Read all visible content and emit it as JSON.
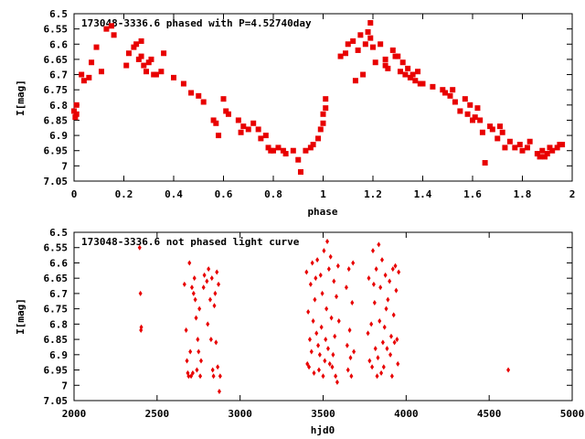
{
  "colors": {
    "marker": "#e80000",
    "axis": "#000000",
    "background": "#ffffff"
  },
  "chart_data": [
    {
      "type": "scatter",
      "title": "173048-3336.6 phased with P=4.52740day",
      "xlabel": "phase",
      "ylabel": "I[mag]",
      "xlim": [
        0,
        2
      ],
      "ylim": [
        6.5,
        7.05
      ],
      "y_inverted": true,
      "grid": false,
      "xticks": [
        0,
        0.2,
        0.4,
        0.6,
        0.8,
        1,
        1.2,
        1.4,
        1.6,
        1.8,
        2
      ],
      "xtick_labels": [
        "0",
        "0.2",
        "0.4",
        "0.6",
        "0.8",
        "1",
        "1.2",
        "1.4",
        "1.6",
        "1.8",
        "2"
      ],
      "yticks": [
        6.5,
        6.55,
        6.6,
        6.65,
        6.7,
        6.75,
        6.8,
        6.85,
        6.9,
        6.95,
        7,
        7.05
      ],
      "ytick_labels": [
        "6.5",
        "6.55",
        "6.6",
        "6.65",
        "6.7",
        "6.75",
        "6.8",
        "6.85",
        "6.9",
        "6.95",
        "7",
        "7.05"
      ],
      "marker": "square",
      "points": [
        [
          0.0,
          6.82
        ],
        [
          0.005,
          6.84
        ],
        [
          0.01,
          6.83
        ],
        [
          0.01,
          6.8
        ],
        [
          0.03,
          6.7
        ],
        [
          0.04,
          6.72
        ],
        [
          0.06,
          6.71
        ],
        [
          0.07,
          6.66
        ],
        [
          0.09,
          6.61
        ],
        [
          0.11,
          6.69
        ],
        [
          0.13,
          6.55
        ],
        [
          0.15,
          6.54
        ],
        [
          0.16,
          6.57
        ],
        [
          0.21,
          6.67
        ],
        [
          0.22,
          6.63
        ],
        [
          0.24,
          6.61
        ],
        [
          0.25,
          6.6
        ],
        [
          0.26,
          6.65
        ],
        [
          0.27,
          6.59
        ],
        [
          0.27,
          6.64
        ],
        [
          0.28,
          6.67
        ],
        [
          0.29,
          6.69
        ],
        [
          0.3,
          6.66
        ],
        [
          0.31,
          6.65
        ],
        [
          0.32,
          6.7
        ],
        [
          0.33,
          6.7
        ],
        [
          0.35,
          6.69
        ],
        [
          0.36,
          6.63
        ],
        [
          0.4,
          6.71
        ],
        [
          0.44,
          6.73
        ],
        [
          0.47,
          6.76
        ],
        [
          0.5,
          6.77
        ],
        [
          0.52,
          6.79
        ],
        [
          0.56,
          6.85
        ],
        [
          0.57,
          6.86
        ],
        [
          0.58,
          6.9
        ],
        [
          0.6,
          6.78
        ],
        [
          0.61,
          6.82
        ],
        [
          0.62,
          6.83
        ],
        [
          0.66,
          6.85
        ],
        [
          0.67,
          6.89
        ],
        [
          0.68,
          6.87
        ],
        [
          0.7,
          6.88
        ],
        [
          0.72,
          6.86
        ],
        [
          0.74,
          6.88
        ],
        [
          0.75,
          6.91
        ],
        [
          0.77,
          6.9
        ],
        [
          0.78,
          6.94
        ],
        [
          0.79,
          6.95
        ],
        [
          0.8,
          6.95
        ],
        [
          0.82,
          6.94
        ],
        [
          0.84,
          6.95
        ],
        [
          0.85,
          6.96
        ],
        [
          0.88,
          6.95
        ],
        [
          0.9,
          6.98
        ],
        [
          0.91,
          7.02
        ],
        [
          0.93,
          6.95
        ],
        [
          0.95,
          6.94
        ],
        [
          0.96,
          6.93
        ],
        [
          0.98,
          6.91
        ],
        [
          0.99,
          6.88
        ],
        [
          1.0,
          6.86
        ],
        [
          1.0,
          6.83
        ],
        [
          1.01,
          6.81
        ],
        [
          1.01,
          6.78
        ],
        [
          1.07,
          6.64
        ],
        [
          1.09,
          6.63
        ],
        [
          1.1,
          6.6
        ],
        [
          1.12,
          6.59
        ],
        [
          1.13,
          6.72
        ],
        [
          1.14,
          6.62
        ],
        [
          1.15,
          6.57
        ],
        [
          1.16,
          6.7
        ],
        [
          1.17,
          6.6
        ],
        [
          1.18,
          6.56
        ],
        [
          1.19,
          6.53
        ],
        [
          1.19,
          6.58
        ],
        [
          1.2,
          6.61
        ],
        [
          1.21,
          6.66
        ],
        [
          1.23,
          6.6
        ],
        [
          1.25,
          6.65
        ],
        [
          1.25,
          6.67
        ],
        [
          1.26,
          6.68
        ],
        [
          1.28,
          6.62
        ],
        [
          1.29,
          6.64
        ],
        [
          1.3,
          6.64
        ],
        [
          1.31,
          6.69
        ],
        [
          1.32,
          6.66
        ],
        [
          1.33,
          6.7
        ],
        [
          1.34,
          6.68
        ],
        [
          1.35,
          6.71
        ],
        [
          1.36,
          6.7
        ],
        [
          1.37,
          6.72
        ],
        [
          1.38,
          6.69
        ],
        [
          1.39,
          6.73
        ],
        [
          1.4,
          6.73
        ],
        [
          1.44,
          6.74
        ],
        [
          1.48,
          6.75
        ],
        [
          1.49,
          6.76
        ],
        [
          1.51,
          6.77
        ],
        [
          1.52,
          6.75
        ],
        [
          1.53,
          6.79
        ],
        [
          1.55,
          6.82
        ],
        [
          1.57,
          6.78
        ],
        [
          1.58,
          6.83
        ],
        [
          1.59,
          6.8
        ],
        [
          1.6,
          6.85
        ],
        [
          1.61,
          6.84
        ],
        [
          1.62,
          6.81
        ],
        [
          1.63,
          6.85
        ],
        [
          1.64,
          6.89
        ],
        [
          1.65,
          6.99
        ],
        [
          1.67,
          6.87
        ],
        [
          1.68,
          6.88
        ],
        [
          1.7,
          6.91
        ],
        [
          1.71,
          6.87
        ],
        [
          1.72,
          6.89
        ],
        [
          1.73,
          6.94
        ],
        [
          1.75,
          6.92
        ],
        [
          1.77,
          6.94
        ],
        [
          1.79,
          6.93
        ],
        [
          1.8,
          6.95
        ],
        [
          1.82,
          6.94
        ],
        [
          1.83,
          6.92
        ],
        [
          1.86,
          6.96
        ],
        [
          1.87,
          6.97
        ],
        [
          1.88,
          6.95
        ],
        [
          1.89,
          6.97
        ],
        [
          1.9,
          6.96
        ],
        [
          1.91,
          6.94
        ],
        [
          1.92,
          6.95
        ],
        [
          1.94,
          6.94
        ],
        [
          1.95,
          6.93
        ],
        [
          1.96,
          6.93
        ]
      ]
    },
    {
      "type": "scatter",
      "title": "173048-3336.6 not phased light curve",
      "xlabel": "hjd0",
      "ylabel": "I[mag]",
      "xlim": [
        2000,
        5000
      ],
      "ylim": [
        6.5,
        7.05
      ],
      "y_inverted": true,
      "grid": false,
      "xticks": [
        2000,
        2500,
        3000,
        3500,
        4000,
        4500,
        5000
      ],
      "xtick_labels": [
        "2000",
        "2500",
        "3000",
        "3500",
        "4000",
        "4500",
        "5000"
      ],
      "yticks": [
        6.5,
        6.55,
        6.6,
        6.65,
        6.7,
        6.75,
        6.8,
        6.85,
        6.9,
        6.95,
        7,
        7.05
      ],
      "ytick_labels": [
        "6.5",
        "6.55",
        "6.6",
        "6.65",
        "6.7",
        "6.75",
        "6.8",
        "6.85",
        "6.9",
        "6.95",
        "7",
        "7.05"
      ],
      "marker": "diamond",
      "points": [
        [
          2395,
          6.55
        ],
        [
          2400,
          6.7
        ],
        [
          2403,
          6.82
        ],
        [
          2405,
          6.81
        ],
        [
          2665,
          6.67
        ],
        [
          2675,
          6.82
        ],
        [
          2680,
          6.92
        ],
        [
          2685,
          6.96
        ],
        [
          2690,
          6.97
        ],
        [
          2695,
          6.6
        ],
        [
          2700,
          6.89
        ],
        [
          2705,
          6.97
        ],
        [
          2710,
          6.68
        ],
        [
          2715,
          6.96
        ],
        [
          2720,
          6.7
        ],
        [
          2725,
          6.65
        ],
        [
          2730,
          6.72
        ],
        [
          2735,
          6.78
        ],
        [
          2740,
          6.95
        ],
        [
          2745,
          6.85
        ],
        [
          2750,
          6.89
        ],
        [
          2755,
          6.75
        ],
        [
          2760,
          6.97
        ],
        [
          2765,
          6.92
        ],
        [
          2780,
          6.68
        ],
        [
          2785,
          6.64
        ],
        [
          2800,
          6.66
        ],
        [
          2805,
          6.8
        ],
        [
          2810,
          6.62
        ],
        [
          2820,
          6.72
        ],
        [
          2825,
          6.85
        ],
        [
          2830,
          6.65
        ],
        [
          2835,
          6.95
        ],
        [
          2840,
          6.97
        ],
        [
          2845,
          6.74
        ],
        [
          2850,
          6.7
        ],
        [
          2855,
          6.86
        ],
        [
          2860,
          6.63
        ],
        [
          2865,
          6.94
        ],
        [
          2870,
          6.67
        ],
        [
          2875,
          7.02
        ],
        [
          2880,
          6.97
        ],
        [
          3400,
          6.63
        ],
        [
          3405,
          6.93
        ],
        [
          3410,
          6.76
        ],
        [
          3415,
          6.94
        ],
        [
          3420,
          6.85
        ],
        [
          3425,
          6.67
        ],
        [
          3430,
          6.89
        ],
        [
          3435,
          6.6
        ],
        [
          3440,
          6.79
        ],
        [
          3445,
          6.96
        ],
        [
          3450,
          6.72
        ],
        [
          3455,
          6.65
        ],
        [
          3460,
          6.83
        ],
        [
          3465,
          6.59
        ],
        [
          3470,
          6.87
        ],
        [
          3475,
          6.95
        ],
        [
          3480,
          6.9
        ],
        [
          3485,
          6.64
        ],
        [
          3490,
          6.81
        ],
        [
          3495,
          6.7
        ],
        [
          3500,
          6.97
        ],
        [
          3505,
          6.56
        ],
        [
          3510,
          6.92
        ],
        [
          3515,
          6.85
        ],
        [
          3520,
          6.75
        ],
        [
          3525,
          6.53
        ],
        [
          3530,
          6.88
        ],
        [
          3535,
          6.62
        ],
        [
          3540,
          6.93
        ],
        [
          3545,
          6.58
        ],
        [
          3550,
          6.78
        ],
        [
          3555,
          6.94
        ],
        [
          3560,
          6.9
        ],
        [
          3565,
          6.66
        ],
        [
          3570,
          6.84
        ],
        [
          3575,
          6.97
        ],
        [
          3580,
          6.71
        ],
        [
          3585,
          6.99
        ],
        [
          3590,
          6.61
        ],
        [
          3595,
          6.79
        ],
        [
          3640,
          6.68
        ],
        [
          3645,
          6.87
        ],
        [
          3650,
          6.95
        ],
        [
          3655,
          6.62
        ],
        [
          3660,
          6.82
        ],
        [
          3665,
          6.91
        ],
        [
          3670,
          6.97
        ],
        [
          3675,
          6.73
        ],
        [
          3680,
          6.6
        ],
        [
          3685,
          6.89
        ],
        [
          3770,
          6.83
        ],
        [
          3775,
          6.65
        ],
        [
          3780,
          6.92
        ],
        [
          3790,
          6.8
        ],
        [
          3795,
          6.94
        ],
        [
          3800,
          6.56
        ],
        [
          3805,
          6.67
        ],
        [
          3810,
          6.73
        ],
        [
          3815,
          6.88
        ],
        [
          3820,
          6.62
        ],
        [
          3825,
          6.97
        ],
        [
          3830,
          6.91
        ],
        [
          3835,
          6.54
        ],
        [
          3840,
          6.79
        ],
        [
          3845,
          6.68
        ],
        [
          3850,
          6.96
        ],
        [
          3855,
          6.59
        ],
        [
          3860,
          6.86
        ],
        [
          3865,
          6.94
        ],
        [
          3870,
          6.81
        ],
        [
          3875,
          6.64
        ],
        [
          3880,
          6.75
        ],
        [
          3885,
          6.88
        ],
        [
          3890,
          6.72
        ],
        [
          3900,
          6.66
        ],
        [
          3905,
          6.9
        ],
        [
          3910,
          6.84
        ],
        [
          3915,
          6.97
        ],
        [
          3920,
          6.62
        ],
        [
          3925,
          6.77
        ],
        [
          3930,
          6.86
        ],
        [
          3935,
          6.61
        ],
        [
          3940,
          6.69
        ],
        [
          3945,
          6.85
        ],
        [
          3950,
          6.93
        ],
        [
          3955,
          6.63
        ],
        [
          4615,
          6.95
        ]
      ]
    }
  ]
}
